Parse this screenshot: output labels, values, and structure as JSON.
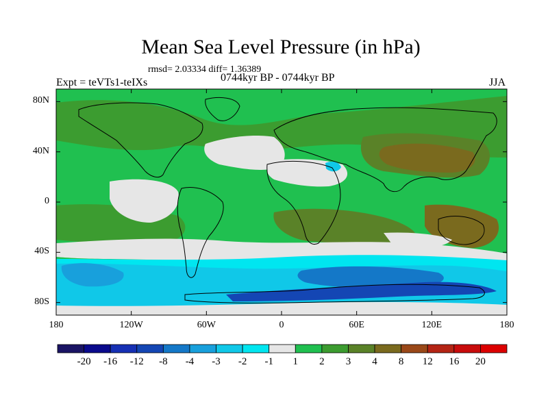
{
  "title": "Mean Sea Level Pressure (in hPa)",
  "stats": "rmsd= 2.03334 diff= 1.36389",
  "period": "0744kyr BP - 0744kyr BP",
  "expt": "Expt = teVTs1-teIXs",
  "season": "JJA",
  "y_axis": {
    "labels": [
      "80N",
      "40N",
      "0",
      "40S",
      "80S"
    ],
    "latitudes": [
      80,
      40,
      0,
      -40,
      -80
    ],
    "range": [
      -90,
      90
    ]
  },
  "x_axis": {
    "labels": [
      "180",
      "120W",
      "60W",
      "0",
      "60E",
      "120E",
      "180"
    ],
    "longitudes": [
      -180,
      -120,
      -60,
      0,
      60,
      120,
      180
    ]
  },
  "colorbar": {
    "labels": [
      "-20",
      "-16",
      "-12",
      "-8",
      "-4",
      "-3",
      "-2",
      "-1",
      "1",
      "2",
      "3",
      "4",
      "8",
      "12",
      "16",
      "20"
    ],
    "colors": [
      "#1a1464",
      "#0a0a8c",
      "#1630b4",
      "#1446b4",
      "#1478c8",
      "#18a0dc",
      "#10c8e8",
      "#00e6f0",
      "#e6e6e6",
      "#20c050",
      "#3c9c30",
      "#5a8228",
      "#7a6a1e",
      "#9a4818",
      "#b42414",
      "#c80c0c",
      "#dc0000"
    ]
  },
  "map_colors": {
    "land_field": "#20c050",
    "positive_2_3": "#3c9c30",
    "positive_3_4": "#5a8228",
    "positive_4_8": "#7a6a1e",
    "neutral": "#e6e6e6",
    "neg_1_2": "#00e6f0",
    "neg_2_3": "#10c8e8",
    "neg_3_4": "#18a0dc",
    "neg_4_8": "#1478c8",
    "neg_8_12": "#1446b4"
  }
}
